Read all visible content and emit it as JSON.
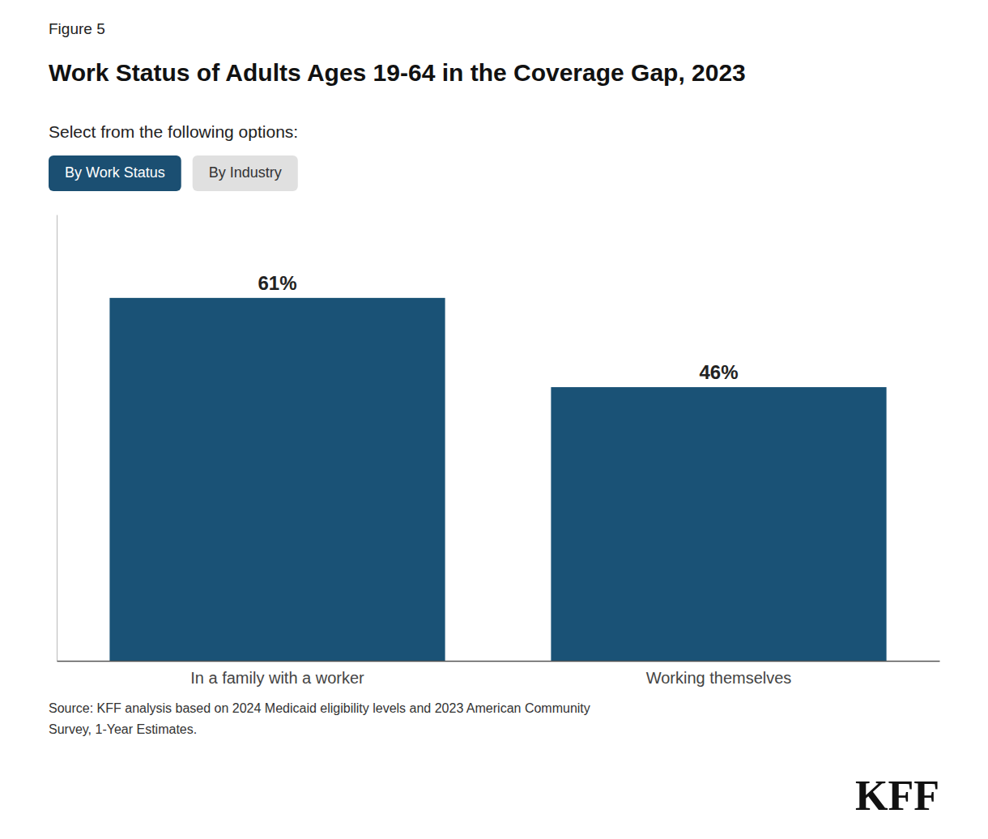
{
  "chart_data": {
    "type": "bar",
    "title": "Work Status of Adults Ages 19-64 in the Coverage Gap, 2023",
    "subtitle": "Select from the following options:",
    "annotations": [
      "Figure 5",
      "By Work Status",
      "By Industry",
      "Source: KFF analysis based on 2024 Medicaid eligibility levels and 2023 American Community\nSurvey, 1-Year Estimates.",
      "KFF"
    ],
    "categories": [
      "In a family with a worker",
      "Working themselves"
    ],
    "values": [
      61,
      46
    ],
    "value_labels": [
      "61%",
      "46%"
    ],
    "color": "#1a5276",
    "ylim": [
      0,
      75
    ],
    "data_labels": true,
    "tick_labels": "x",
    "grid": false
  }
}
